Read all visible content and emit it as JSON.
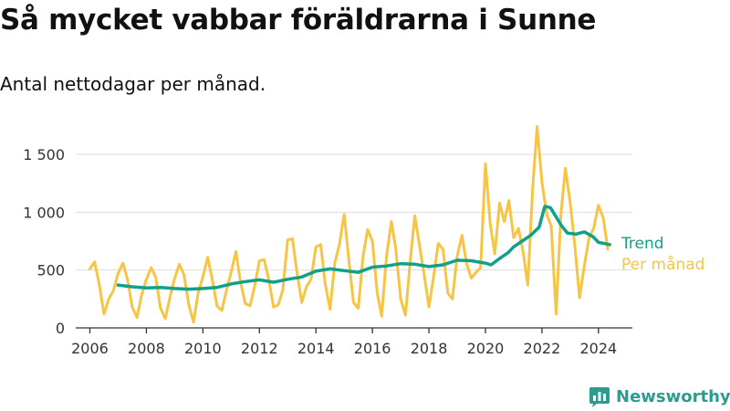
{
  "title": "Så mycket vabbar föräldrarna i Sunne",
  "subtitle": "Antal nettodagar per månad.",
  "brand": {
    "name": "Newsworthy",
    "color": "#2a9d8f",
    "icon": "bar-chart-logo-icon"
  },
  "colors": {
    "trend": "#12a08a",
    "monthly": "#f7c444",
    "grid": "#dddddd",
    "axis": "#333333"
  },
  "chart_data": {
    "type": "line",
    "title": "",
    "xlabel": "",
    "ylabel": "",
    "xlim": [
      2005.5,
      2025.2
    ],
    "ylim": [
      0,
      1650
    ],
    "yticks": [
      0,
      500,
      1000,
      1500
    ],
    "ytick_labels": [
      "0",
      "500",
      "1 000",
      "1 500"
    ],
    "xticks": [
      2006,
      2008,
      2010,
      2012,
      2014,
      2016,
      2018,
      2020,
      2022,
      2024
    ],
    "xtick_labels": [
      "2006",
      "2008",
      "2010",
      "2012",
      "2014",
      "2016",
      "2018",
      "2020",
      "2022",
      "2024"
    ],
    "grid": true,
    "legend": "right, inline at line ends",
    "series": [
      {
        "name": "Trend",
        "x": [
          2007.0,
          2007.5,
          2008.0,
          2008.5,
          2009.0,
          2009.5,
          2010.0,
          2010.5,
          2011.0,
          2011.5,
          2012.0,
          2012.5,
          2013.0,
          2013.5,
          2014.0,
          2014.5,
          2015.0,
          2015.5,
          2016.0,
          2016.5,
          2017.0,
          2017.5,
          2018.0,
          2018.5,
          2019.0,
          2019.5,
          2020.0,
          2020.2,
          2020.5,
          2020.8,
          2021.0,
          2021.3,
          2021.6,
          2021.9,
          2022.1,
          2022.3,
          2022.5,
          2022.7,
          2022.9,
          2023.2,
          2023.5,
          2023.8,
          2024.0,
          2024.4
        ],
        "values": [
          370,
          355,
          345,
          350,
          340,
          335,
          340,
          350,
          380,
          400,
          415,
          395,
          420,
          440,
          490,
          510,
          495,
          480,
          525,
          535,
          555,
          550,
          530,
          545,
          585,
          580,
          560,
          545,
          600,
          650,
          700,
          750,
          800,
          870,
          1050,
          1040,
          960,
          880,
          820,
          810,
          830,
          790,
          740,
          720
        ]
      },
      {
        "name": "Per månad",
        "x": [
          2006.0,
          2006.17,
          2006.33,
          2006.5,
          2006.67,
          2006.83,
          2007.0,
          2007.17,
          2007.33,
          2007.5,
          2007.67,
          2007.83,
          2008.0,
          2008.17,
          2008.33,
          2008.5,
          2008.67,
          2008.83,
          2009.0,
          2009.17,
          2009.33,
          2009.5,
          2009.67,
          2009.83,
          2010.0,
          2010.17,
          2010.33,
          2010.5,
          2010.67,
          2010.83,
          2011.0,
          2011.17,
          2011.33,
          2011.5,
          2011.67,
          2011.83,
          2012.0,
          2012.17,
          2012.33,
          2012.5,
          2012.67,
          2012.83,
          2013.0,
          2013.17,
          2013.33,
          2013.5,
          2013.67,
          2013.83,
          2014.0,
          2014.17,
          2014.33,
          2014.5,
          2014.67,
          2014.83,
          2015.0,
          2015.17,
          2015.33,
          2015.5,
          2015.67,
          2015.83,
          2016.0,
          2016.17,
          2016.33,
          2016.5,
          2016.67,
          2016.83,
          2017.0,
          2017.17,
          2017.33,
          2017.5,
          2017.67,
          2017.83,
          2018.0,
          2018.17,
          2018.33,
          2018.5,
          2018.67,
          2018.83,
          2019.0,
          2019.17,
          2019.33,
          2019.5,
          2019.67,
          2019.83,
          2020.0,
          2020.17,
          2020.33,
          2020.5,
          2020.67,
          2020.83,
          2021.0,
          2021.17,
          2021.33,
          2021.5,
          2021.67,
          2021.83,
          2022.0,
          2022.17,
          2022.33,
          2022.5,
          2022.67,
          2022.83,
          2023.0,
          2023.17,
          2023.33,
          2023.5,
          2023.67,
          2023.83,
          2024.0,
          2024.17,
          2024.33
        ],
        "values": [
          510,
          570,
          380,
          120,
          250,
          320,
          470,
          560,
          420,
          180,
          90,
          280,
          420,
          520,
          440,
          170,
          80,
          260,
          430,
          550,
          460,
          200,
          50,
          300,
          440,
          610,
          420,
          190,
          150,
          320,
          480,
          660,
          400,
          210,
          190,
          360,
          580,
          590,
          420,
          180,
          200,
          330,
          760,
          770,
          480,
          220,
          360,
          420,
          700,
          720,
          380,
          160,
          560,
          720,
          980,
          580,
          220,
          170,
          620,
          850,
          750,
          300,
          100,
          620,
          920,
          680,
          250,
          110,
          560,
          970,
          710,
          460,
          180,
          450,
          730,
          680,
          300,
          250,
          620,
          800,
          560,
          430,
          480,
          520,
          1420,
          900,
          640,
          1080,
          920,
          1100,
          780,
          860,
          660,
          370,
          1200,
          1740,
          1260,
          980,
          880,
          120,
          980,
          1380,
          1080,
          700,
          260,
          540,
          780,
          860,
          1060,
          950,
          680
        ]
      }
    ]
  }
}
